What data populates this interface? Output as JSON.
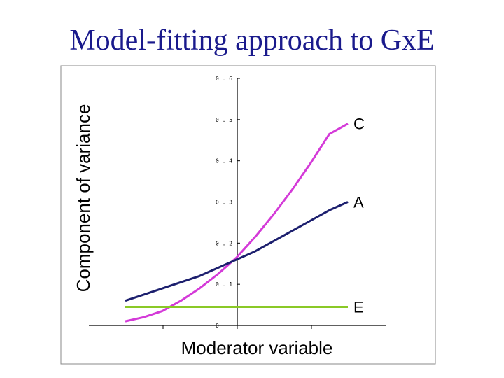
{
  "slide": {
    "title": "Model-fitting approach to GxE"
  },
  "chart_data": {
    "type": "line",
    "title": "",
    "xlabel": "Moderator variable",
    "ylabel": "Component of variance",
    "ylim": [
      0,
      0.6
    ],
    "yticks": [
      "0",
      "0.1",
      "0.2",
      "0.3",
      "0.4",
      "0.5",
      "0.6"
    ],
    "xlim": [
      -1.5,
      1.5
    ],
    "x": [
      -1.5,
      -1.25,
      -1.0,
      -0.75,
      -0.5,
      -0.25,
      0.0,
      0.25,
      0.5,
      0.75,
      1.0,
      1.25,
      1.5
    ],
    "series": [
      {
        "name": "C",
        "color": "#d43ad8",
        "values": [
          0.01,
          0.02,
          0.035,
          0.06,
          0.09,
          0.125,
          0.165,
          0.215,
          0.27,
          0.33,
          0.395,
          0.465,
          0.49
        ]
      },
      {
        "name": "A",
        "color": "#1c1f6e",
        "values": [
          0.06,
          0.075,
          0.09,
          0.105,
          0.12,
          0.14,
          0.16,
          0.18,
          0.205,
          0.23,
          0.255,
          0.28,
          0.3
        ]
      },
      {
        "name": "E",
        "color": "#8ac926",
        "values": [
          0.045,
          0.045,
          0.045,
          0.045,
          0.045,
          0.045,
          0.045,
          0.045,
          0.045,
          0.045,
          0.045,
          0.045,
          0.045
        ]
      }
    ],
    "grid": false,
    "legend": "direct labels at right end of lines"
  }
}
